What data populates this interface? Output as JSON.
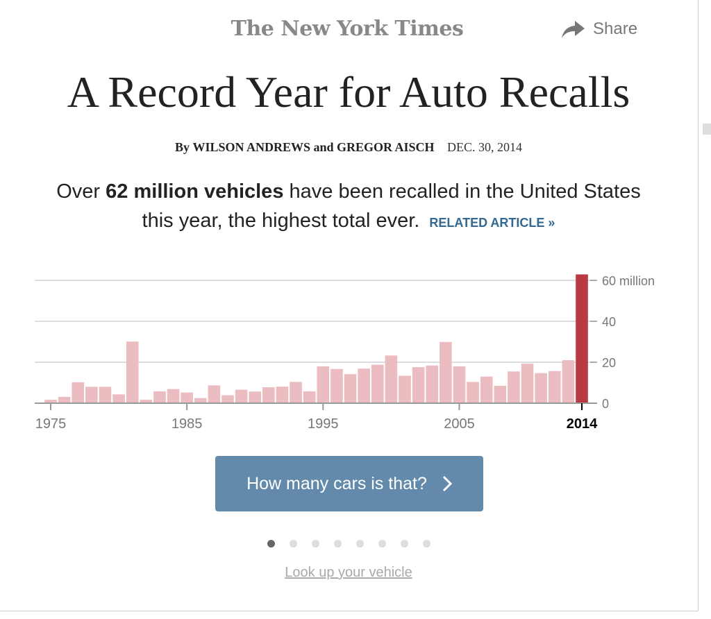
{
  "header": {
    "logo": "The New York Times",
    "share_label": "Share"
  },
  "article": {
    "title": "A Record Year for Auto Recalls",
    "byline_prefix": "By",
    "authors": "WILSON ANDREWS and GREGOR AISCH",
    "date": "DEC. 30, 2014",
    "summary_pre": "Over ",
    "summary_bold": "62 million vehicles",
    "summary_post": " have been recalled in the United States this year, the highest total ever.",
    "related_link": "RELATED ARTICLE »"
  },
  "chart_data": {
    "type": "bar",
    "x": [
      1975,
      1976,
      1977,
      1978,
      1979,
      1980,
      1981,
      1982,
      1983,
      1984,
      1985,
      1986,
      1987,
      1988,
      1989,
      1990,
      1991,
      1992,
      1993,
      1994,
      1995,
      1996,
      1997,
      1998,
      1999,
      2000,
      2001,
      2002,
      2003,
      2004,
      2005,
      2006,
      2007,
      2008,
      2009,
      2010,
      2011,
      2012,
      2013,
      2014
    ],
    "values": [
      1.7,
      3.1,
      10.2,
      8,
      8,
      4.3,
      30.1,
      1.7,
      5.8,
      6.9,
      5.2,
      2.5,
      8.7,
      3.9,
      6.6,
      5.7,
      7.8,
      8.1,
      10.4,
      5.8,
      18,
      16.7,
      14.2,
      16.9,
      18.8,
      23.3,
      13.4,
      17.6,
      18.4,
      29.9,
      18,
      10.4,
      13,
      8.5,
      15.5,
      19.3,
      14.7,
      15.7,
      21,
      62.9
    ],
    "highlight_year": 2014,
    "colors": {
      "normal": "#ebbcc0",
      "highlight": "#b93a42"
    },
    "x_ticks": [
      "1975",
      "1985",
      "1995",
      "2005",
      "2014"
    ],
    "y_ticks": [
      "0",
      "20",
      "40",
      "60 million"
    ],
    "ylim": [
      0,
      60
    ],
    "grid": true,
    "y_axis_position": "right"
  },
  "cta": {
    "label": "How many cars is that?",
    "icon": "chevron-right-icon"
  },
  "pagination": {
    "total": 8,
    "current": 1
  },
  "lookup_link": "Look up your vehicle"
}
